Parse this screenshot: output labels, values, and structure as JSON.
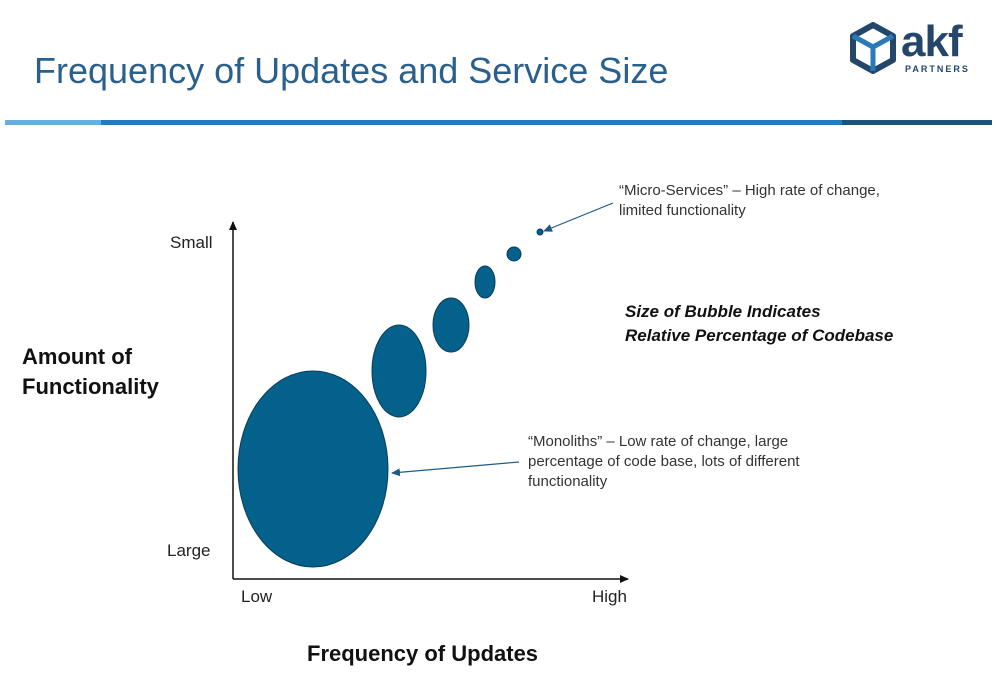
{
  "title": "Frequency of Updates and Service Size",
  "logo": {
    "word": "akf",
    "sub": "PARTNERS",
    "icon": "hexagon-cube-icon",
    "color": "#24466b"
  },
  "axes": {
    "y_title_line1": "Amount of",
    "y_title_line2": "Functionality",
    "y_top": "Small",
    "y_bottom": "Large",
    "x_title": "Frequency of Updates",
    "x_left": "Low",
    "x_right": "High"
  },
  "annotations": {
    "micro_line1": "“Micro-Services” – High rate of change,",
    "micro_line2": "limited functionality",
    "mono_line1": "“Monoliths” – Low rate of change, large",
    "mono_line2": "percentage of code base, lots of different",
    "mono_line3": "functionality"
  },
  "note": {
    "line1": "Size of Bubble Indicates",
    "line2": "Relative Percentage of Codebase"
  },
  "colors": {
    "bubble": "#04618c",
    "title": "#2b5f8c",
    "axis": "#111111",
    "arrow": "#1f5a86"
  },
  "bubbles": [
    {
      "name": "bubble-monolith",
      "rx": 75,
      "ry": 98
    },
    {
      "name": "bubble-2",
      "rx": 27,
      "ry": 46
    },
    {
      "name": "bubble-3",
      "rx": 18,
      "ry": 27
    },
    {
      "name": "bubble-4",
      "rx": 10,
      "ry": 16
    },
    {
      "name": "bubble-5",
      "rx": 7,
      "ry": 7
    },
    {
      "name": "bubble-micro-service",
      "rx": 3,
      "ry": 3
    }
  ]
}
